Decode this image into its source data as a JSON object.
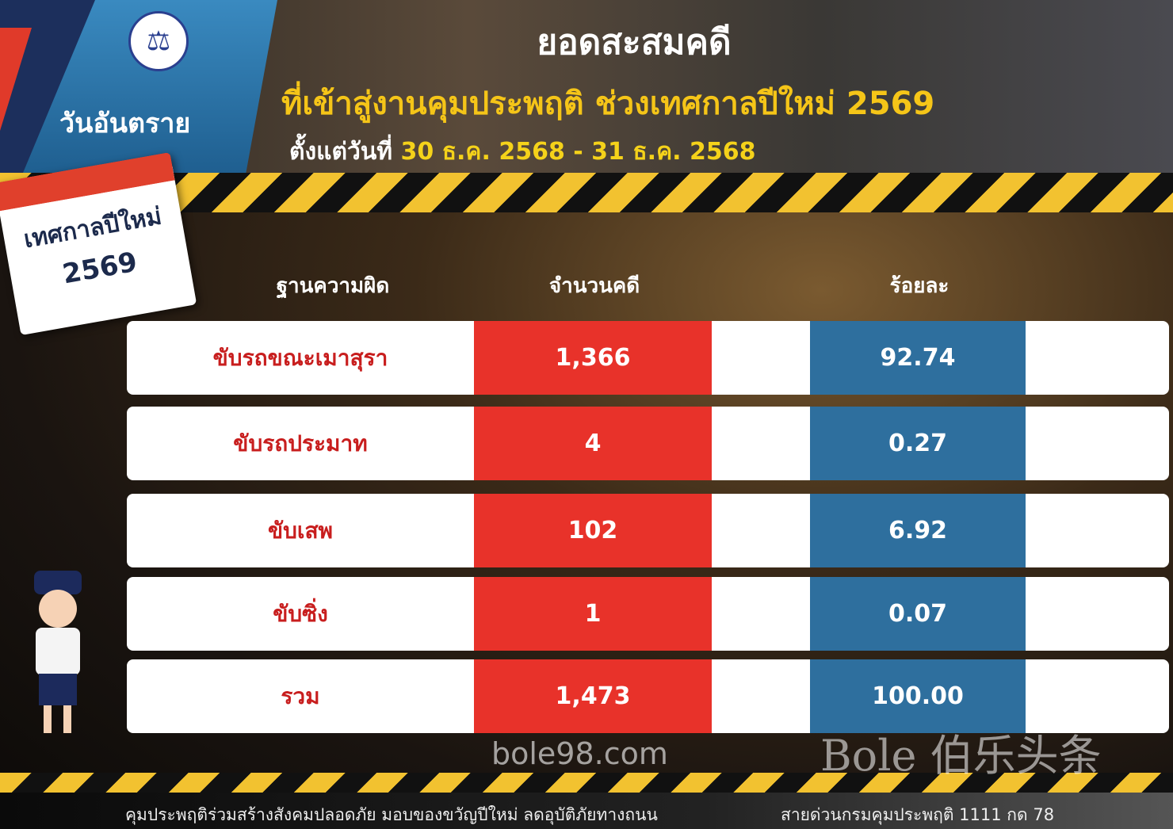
{
  "header": {
    "badge": "วันอันตราย",
    "title": "ยอดสะสมคดี",
    "subtitle": "ที่เข้าสู่งานคุมประพฤติ ช่วงเทศกาลปีใหม่ 2569",
    "date_prefix": "ตั้งแต่วันที่",
    "date_range": "30 ธ.ค. 2568 - 31 ธ.ค. 2568"
  },
  "calendar": {
    "label": "เทศกาลปีใหม่",
    "year": "2569"
  },
  "table": {
    "columns": [
      "ฐานความผิด",
      "จำนวนคดี",
      "ร้อยละ"
    ],
    "rows": [
      {
        "offense": "ขับรถขณะเมาสุรา",
        "cases": "1,366",
        "percent": "92.74"
      },
      {
        "offense": "ขับรถประมาท",
        "cases": "4",
        "percent": "0.27"
      },
      {
        "offense": "ขับเสพ",
        "cases": "102",
        "percent": "6.92"
      },
      {
        "offense": "ขับซิ่ง",
        "cases": "1",
        "percent": "0.07"
      },
      {
        "offense": "รวม",
        "cases": "1,473",
        "percent": "100.00"
      }
    ]
  },
  "footer": {
    "slogan": "คุมประพฤติร่วมสร้างสังคมปลอดภัย มอบของขวัญปีใหม่ ลดอุบัติภัยทางถนน",
    "hotline": "สายด่วนกรมคุมประพฤติ 1111 กด 78"
  },
  "watermark": {
    "brand": "Bole 伯乐头条",
    "site": "bole98.com"
  },
  "colors": {
    "red": "#e8322a",
    "blue": "#2e6f9e",
    "yellow": "#f5c518"
  }
}
